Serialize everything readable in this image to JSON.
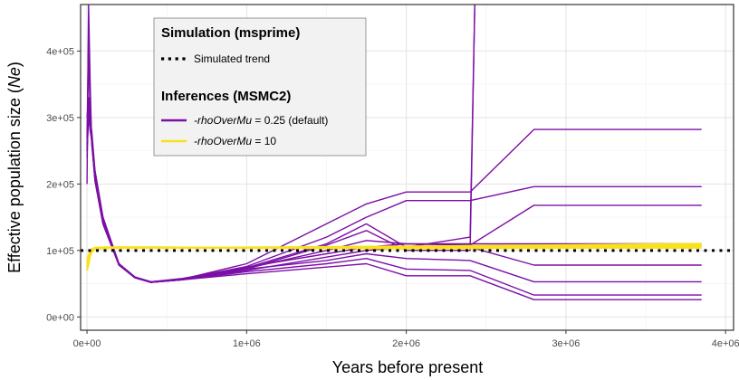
{
  "chart_data": {
    "type": "line",
    "xlabel": "Years before present",
    "ylabel_prefix": "Effective population size (",
    "ylabel_italic": "Ne",
    "ylabel_suffix": ")",
    "xlim": [
      -40000,
      4050000
    ],
    "ylim": [
      -20000,
      470000
    ],
    "x_ticks": [
      0,
      1000000,
      2000000,
      3000000,
      4000000
    ],
    "x_tick_labels": [
      "0e+00",
      "1e+06",
      "2e+06",
      "3e+06",
      "4e+06"
    ],
    "y_ticks": [
      0,
      100000,
      200000,
      300000,
      400000
    ],
    "y_tick_labels": [
      "0e+00",
      "1e+05",
      "2e+05",
      "3e+05",
      "4e+05"
    ],
    "grid": true,
    "legend_position": "top-left inside",
    "colors": {
      "purple": "#7b0fa6",
      "yellow": "#f9e11e",
      "trend": "#000000"
    },
    "legend": {
      "group1_title": "Simulation (msprime)",
      "group1_items": [
        {
          "label": "Simulated trend",
          "style": "dotted",
          "color": "#000000"
        }
      ],
      "group2_title": "Inferences (MSMC2)",
      "group2_items": [
        {
          "label_italic": "-rhoOverMu",
          "label_rest": " = 0.25 (default)",
          "color": "#7b0fa6"
        },
        {
          "label_italic": "-rhoOverMu",
          "label_rest": " = 10",
          "color": "#f9e11e"
        }
      ]
    },
    "simulated_trend": {
      "y": 100000
    },
    "series_purple": [
      {
        "x": [
          0,
          10000,
          20000,
          30000,
          50000,
          100000,
          200000,
          300000,
          400000,
          600000,
          1000000,
          1500000,
          1750000,
          2000000,
          2400000,
          2800000,
          3850000
        ],
        "y": [
          200000,
          470000,
          350000,
          260000,
          220000,
          150000,
          80000,
          60000,
          53000,
          58000,
          75000,
          95000,
          105000,
          110000,
          110000,
          110000,
          110000
        ]
      },
      {
        "x": [
          0,
          10000,
          20000,
          30000,
          50000,
          100000,
          200000,
          300000,
          400000,
          600000,
          1000000,
          1500000,
          1750000,
          2000000,
          2400000,
          2430000,
          2800000
        ],
        "y": [
          270000,
          430000,
          320000,
          270000,
          210000,
          145000,
          80000,
          60000,
          52000,
          57000,
          74000,
          110000,
          140000,
          105000,
          120000,
          480000,
          480000
        ]
      },
      {
        "x": [
          0,
          10000,
          20000,
          30000,
          50000,
          100000,
          200000,
          300000,
          400000,
          600000,
          1000000,
          1500000,
          1750000,
          2000000,
          2400000,
          2430000,
          2600000
        ],
        "y": [
          250000,
          400000,
          300000,
          260000,
          205000,
          140000,
          78000,
          59000,
          52000,
          56000,
          72000,
          108000,
          130000,
          100000,
          100000,
          480000,
          480000
        ]
      },
      {
        "x": [
          0,
          10000,
          20000,
          30000,
          50000,
          100000,
          200000,
          300000,
          400000,
          600000,
          1000000,
          1500000,
          1750000,
          2000000,
          2400000,
          2800000,
          3850000
        ],
        "y": [
          300000,
          330000,
          290000,
          280000,
          220000,
          150000,
          80000,
          60000,
          53000,
          57000,
          80000,
          140000,
          170000,
          188000,
          188000,
          282000,
          282000
        ]
      },
      {
        "x": [
          0,
          10000,
          20000,
          30000,
          50000,
          100000,
          200000,
          300000,
          400000,
          600000,
          1000000,
          1500000,
          1750000,
          2000000,
          2400000,
          2800000,
          3850000
        ],
        "y": [
          280000,
          310000,
          300000,
          270000,
          210000,
          145000,
          80000,
          60000,
          52000,
          57000,
          76000,
          120000,
          150000,
          175000,
          175000,
          196000,
          196000
        ]
      },
      {
        "x": [
          0,
          10000,
          20000,
          30000,
          50000,
          100000,
          200000,
          300000,
          400000,
          600000,
          1000000,
          1500000,
          1750000,
          2000000,
          2400000,
          2800000,
          3850000
        ],
        "y": [
          260000,
          300000,
          280000,
          265000,
          205000,
          140000,
          78000,
          59000,
          52000,
          56000,
          73000,
          100000,
          115000,
          110000,
          108000,
          168000,
          168000
        ]
      },
      {
        "x": [
          0,
          10000,
          20000,
          30000,
          50000,
          100000,
          200000,
          300000,
          400000,
          600000,
          1000000,
          1500000,
          1750000,
          2000000,
          2400000,
          2800000,
          3850000
        ],
        "y": [
          240000,
          310000,
          290000,
          270000,
          210000,
          145000,
          80000,
          60000,
          53000,
          57000,
          70000,
          90000,
          100000,
          105000,
          105000,
          78000,
          78000
        ]
      },
      {
        "x": [
          0,
          10000,
          20000,
          30000,
          50000,
          100000,
          200000,
          300000,
          400000,
          600000,
          1000000,
          1500000,
          1750000,
          2000000,
          2400000,
          2800000,
          3850000
        ],
        "y": [
          260000,
          320000,
          295000,
          270000,
          210000,
          145000,
          80000,
          60000,
          52000,
          56000,
          72000,
          85000,
          95000,
          88000,
          85000,
          53000,
          53000
        ]
      },
      {
        "x": [
          0,
          10000,
          20000,
          30000,
          50000,
          100000,
          200000,
          300000,
          400000,
          600000,
          1000000,
          1500000,
          1750000,
          2000000,
          2400000,
          2800000,
          3850000
        ],
        "y": [
          250000,
          300000,
          285000,
          265000,
          205000,
          140000,
          78000,
          59000,
          52000,
          56000,
          68000,
          80000,
          88000,
          72000,
          70000,
          33000,
          33000
        ]
      },
      {
        "x": [
          0,
          10000,
          20000,
          30000,
          50000,
          100000,
          200000,
          300000,
          400000,
          600000,
          1000000,
          1500000,
          1750000,
          2000000,
          2400000,
          2800000,
          3850000
        ],
        "y": [
          255000,
          310000,
          290000,
          268000,
          208000,
          143000,
          79000,
          59000,
          52000,
          56000,
          65000,
          75000,
          80000,
          62000,
          62000,
          26000,
          26000
        ]
      }
    ],
    "series_yellow": [
      {
        "x": [
          0,
          10000,
          20000,
          30000,
          50000,
          100000,
          200000,
          500000,
          1000000,
          2000000,
          3000000,
          3850000
        ],
        "y": [
          70000,
          80000,
          92000,
          98000,
          102000,
          103500,
          104000,
          104000,
          104000,
          104500,
          105000,
          106000
        ]
      },
      {
        "x": [
          0,
          10000,
          20000,
          30000,
          50000,
          100000,
          200000,
          500000,
          1000000,
          2000000,
          3000000,
          3850000
        ],
        "y": [
          75000,
          85000,
          95000,
          100000,
          103000,
          104000,
          104500,
          104500,
          104000,
          105000,
          107000,
          108000
        ]
      },
      {
        "x": [
          0,
          10000,
          20000,
          30000,
          50000,
          100000,
          200000,
          500000,
          1000000,
          2000000,
          3000000,
          3850000
        ],
        "y": [
          80000,
          88000,
          97000,
          101000,
          103500,
          104000,
          104000,
          104000,
          104500,
          106000,
          108000,
          110000
        ]
      },
      {
        "x": [
          0,
          10000,
          20000,
          30000,
          50000,
          100000,
          200000,
          500000,
          1000000,
          2000000,
          3000000,
          3850000
        ],
        "y": [
          85000,
          92000,
          99000,
          102000,
          104000,
          104500,
          105000,
          104500,
          104000,
          103000,
          104000,
          104000
        ]
      }
    ]
  }
}
